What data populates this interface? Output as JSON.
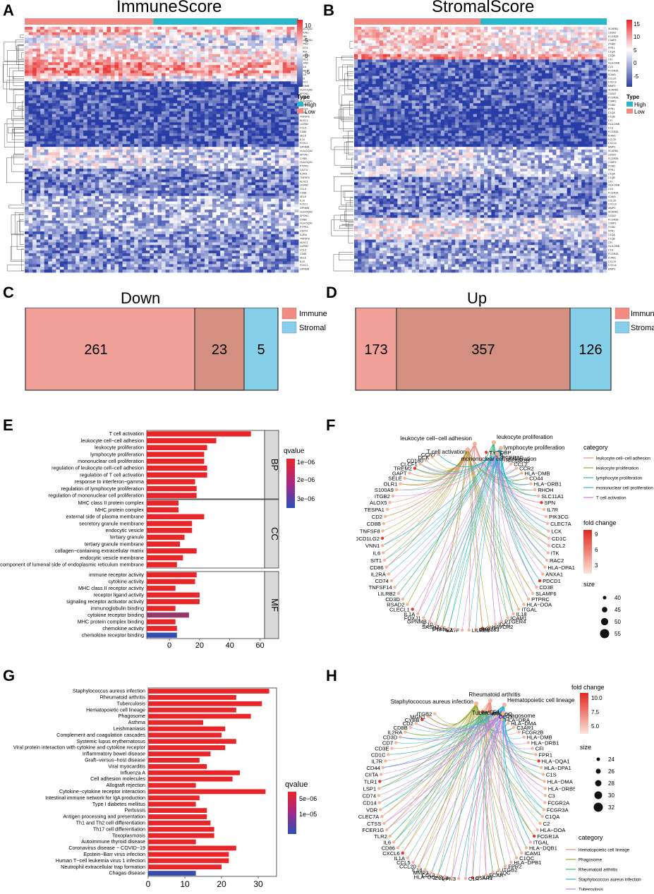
{
  "panels": {
    "A": {
      "letter": "A",
      "title": "ImmuneScore",
      "colorbar_ticks": [
        "10",
        "5",
        "0",
        "-5"
      ],
      "legend_title": "Type",
      "legend_items": [
        {
          "label": "High",
          "color": "#2ab7c9"
        },
        {
          "label": "Low",
          "color": "#f08a82"
        }
      ],
      "row_label_sample": [
        "HLA-DQA2",
        "SPON1",
        "CYBB",
        "HLA-DQA1",
        "PTPRC",
        "CD274",
        "IL2RA",
        "TNFSF8",
        "KLRC1",
        "LILRB2",
        "CCL5",
        "CD86",
        "SELE",
        "IL10",
        "FOXJ1",
        "GPNMB"
      ]
    },
    "B": {
      "letter": "B",
      "title": "StromalScore",
      "colorbar_ticks": [
        "15",
        "10",
        "5",
        "0",
        "-5"
      ],
      "legend_title": "Type",
      "legend_items": [
        {
          "label": "High",
          "color": "#2ab7c9"
        },
        {
          "label": "Low",
          "color": "#f08a82"
        }
      ],
      "row_label_sample": [
        "SCARB1",
        "CD302",
        "FCGR2B",
        "C3AR1",
        "ITGB2",
        "FPR1",
        "C1QA",
        "C1QB",
        "CFI",
        "HLA-DMB",
        "C1S",
        "FCGR3A",
        "ICAM1",
        "CCL20",
        "CXCL6",
        "MMP3"
      ]
    },
    "C": {
      "letter": "C",
      "title": "Down",
      "regions": [
        {
          "value": "261",
          "color": "#f2a19a"
        },
        {
          "value": "23",
          "color": "#d39081"
        },
        {
          "value": "5",
          "color": "#86cfe8"
        }
      ],
      "legend": [
        {
          "label": "Immune",
          "color": "#f28b82"
        },
        {
          "label": "Stromal",
          "color": "#87ceeb"
        }
      ]
    },
    "D": {
      "letter": "D",
      "title": "Up",
      "regions": [
        {
          "value": "173",
          "color": "#f2a19a"
        },
        {
          "value": "357",
          "color": "#d39081"
        },
        {
          "value": "126",
          "color": "#86cfe8"
        }
      ],
      "legend": [
        {
          "label": "Immune",
          "color": "#f28b82"
        },
        {
          "label": "Stromal",
          "color": "#87ceeb"
        }
      ]
    },
    "E": {
      "letter": "E"
    },
    "F": {
      "letter": "F",
      "category_title": "category",
      "categories": [
        {
          "label": "leukocyte cell−cell adhesion",
          "color": "#f08a82"
        },
        {
          "label": "leukocyte proliferation",
          "color": "#9aa829"
        },
        {
          "label": "lymphocyte proliferation",
          "color": "#34b97a"
        },
        {
          "label": "mononuclear cell proliferation",
          "color": "#2ab3d6"
        },
        {
          "label": "T cell activation",
          "color": "#c77ce8"
        }
      ],
      "fold_title": "fold change",
      "fold_ticks": [
        "9",
        "6",
        "3"
      ],
      "size_title": "size",
      "size_items": [
        "40",
        "45",
        "50",
        "55"
      ],
      "terms": [
        "leukocyte cell−cell adhesion",
        "T cell activation",
        "leukocyte proliferation",
        "lymphocyte proliferation",
        "mononuclear cell proliferation"
      ],
      "genes": [
        "TYROBP",
        "IL6",
        "FCER1G",
        "FCGR2B",
        "CCL2",
        "CCR2",
        "HLA−DMB",
        "CD44",
        "HLA−DRB1",
        "RHOH",
        "SLC11A1",
        "SPN",
        "IL7R",
        "PIK3CG",
        "CLEC7A",
        "LCK",
        "CD1C",
        "CCL2",
        "ITK",
        "RAC2",
        "HLA−DPA1",
        "ANXA1",
        "PDCD1",
        "CD3E",
        "SLAMF6",
        "PTPRC",
        "HLA−DOA",
        "ITGAL",
        "IL18",
        "ICAM1",
        "PTGER4",
        "IDO1",
        "HAVCR2",
        "CD7",
        "GPR183",
        "LILRB1",
        "BATF",
        "PTPN22",
        "CCL5",
        "SASH3",
        "IL10",
        "GPNMB",
        "FOXJ1",
        "IL1A",
        "CLECL1",
        "RSAD2",
        "CD3D",
        "LILRB2",
        "TNFSF14",
        "CD74",
        "IL2RA",
        "CD86",
        "SIT1",
        "IL6",
        "VNN1",
        "PDCD1LG2",
        "TNFSF8",
        "CD8B",
        "CD2",
        "TESPA1",
        "ALOX5",
        "ITGB2",
        "S100A9",
        "OLR1",
        "SELE",
        "GAPT",
        "TREM2",
        "CLCF1",
        "CD180",
        "DCK",
        "CCR7"
      ]
    },
    "G": {
      "letter": "G"
    },
    "H": {
      "letter": "H",
      "category_title": "category",
      "categories": [
        {
          "label": "Hematopoietic cell lineage",
          "color": "#f08a82"
        },
        {
          "label": "Phagosome",
          "color": "#9aa829"
        },
        {
          "label": "Rheumatoid arthritis",
          "color": "#34b97a"
        },
        {
          "label": "Staphylococcus aureus infection",
          "color": "#2ab3d6"
        },
        {
          "label": "Tuberculosis",
          "color": "#c77ce8"
        }
      ],
      "fold_title": "fold change",
      "fold_ticks": [
        "10.0",
        "7.5",
        "5.0"
      ],
      "size_title": "size",
      "size_items": [
        "24",
        "26",
        "28",
        "30",
        "32"
      ],
      "terms": [
        "Rheumatoid arthritis",
        "Staphylococcus aureus infection",
        "Tuberculosis",
        "Hematopoietic cell lineage",
        "Phagosome"
      ],
      "genes": [
        "NCF4",
        "MARCO",
        "OLR1",
        "HLA−DRA",
        "HLA−DMA",
        "C3AR1",
        "FCGR2B",
        "HLA−DMB",
        "HLA−DRB1",
        "CFI",
        "FPR1",
        "HLA−DQA1",
        "HLA−DPA1",
        "C1S",
        "HLA−DMA",
        "HLA−DRB5",
        "C3",
        "FCGR2A",
        "FCGR3A",
        "C1QA",
        "C2",
        "HLA−DOA",
        "FCGR1A",
        "ITGAL",
        "HLA−DQB1",
        "ICAM1",
        "C1QC",
        "HLA−DPB1",
        "FPR2",
        "ITGB2",
        "C1QC",
        "FCAR",
        "IL10",
        "C5AR1",
        "C1R",
        "FPR3",
        "C1QB",
        "HLA−DQA2",
        "CCL2",
        "MMP3",
        "IL18",
        "CCL20",
        "CCL5",
        "IL1A",
        "CXCL6",
        "CD86",
        "IL6",
        "TLR2",
        "FCER1G",
        "CTSS",
        "CLEC7A",
        "VDR",
        "CD14",
        "CD74",
        "LSP1",
        "TLR1",
        "CIITA",
        "CD44",
        "IL7R",
        "CD1C",
        "CD3E",
        "CD7",
        "CD3D",
        "IL2RA",
        "CD8B",
        "CD2",
        "CYBB",
        "MGN1",
        "ITGB2"
      ]
    }
  },
  "chart_data": [
    {
      "type": "bar",
      "panel": "E",
      "orientation": "horizontal",
      "facets": [
        {
          "name": "BP",
          "categories": [
            "T cell activation",
            "leukocyte cell−cell adhesion",
            "leukocyte proliferation",
            "lymphocyte proliferation",
            "mononuclear cell proliferation",
            "regulation of leukocyte cell−cell adhesion",
            "regulation of T cell activation",
            "response to interferon−gamma",
            "regulation of lymphocyte proliferation",
            "regulation of mononuclear cell proliferation"
          ],
          "values": [
            54,
            31,
            25,
            23,
            23,
            25,
            25,
            17,
            18,
            18
          ],
          "qvalues": [
            1e-07,
            1e-07,
            1e-07,
            1e-07,
            1e-07,
            1e-07,
            1e-07,
            1e-07,
            1e-07,
            1e-07
          ]
        },
        {
          "name": "CC",
          "categories": [
            "MHC class II protein complex",
            "MHC protein complex",
            "external side of plasma membrane",
            "secretory granule membrane",
            "endocytic vesicle",
            "tertiary granule",
            "tertiary granule membrane",
            "collagen−containing extracellular matrix",
            "endocytic vesicle membrane",
            "integral component of lumenal side of endoplasmic reticulum membrane"
          ],
          "values": [
            6,
            6,
            23,
            15,
            15,
            10,
            7,
            18,
            9,
            5
          ],
          "qvalues": [
            1e-07,
            1e-07,
            1e-07,
            1e-07,
            1e-07,
            1e-07,
            1e-07,
            1e-07,
            1e-07,
            1e-07
          ]
        },
        {
          "name": "MF",
          "categories": [
            "immune receptor activity",
            "cytokine activity",
            "MHC class II receptor activity",
            "receptor ligand activity",
            "signaling receptor activator activity",
            "immunoglobulin binding",
            "cytokine receptor binding",
            "MHC protein complex binding",
            "chemokine activity",
            "chemokine receptor binding"
          ],
          "values": [
            18,
            17,
            4,
            20,
            20,
            4,
            13,
            4,
            5,
            5
          ],
          "qvalues": [
            1e-07,
            1e-07,
            1e-07,
            1e-07,
            1e-07,
            1e-07,
            1.5e-06,
            1e-07,
            1e-07,
            3.2e-06
          ]
        }
      ],
      "xticks": [
        0,
        20,
        40,
        60
      ],
      "xlim": [
        -15,
        63
      ],
      "legend_title": "qvalue",
      "legend_ticks": [
        "1e−06",
        "2e−06",
        "3e−06"
      ],
      "qvalue_range": [
        1e-07,
        3.3e-06
      ],
      "title": "",
      "xlabel": "",
      "ylabel": ""
    },
    {
      "type": "bar",
      "panel": "G",
      "orientation": "horizontal",
      "categories": [
        "Staphylococcus aureus infection",
        "Rheumatoid arthritis",
        "Tuberculosis",
        "Hematopoietic cell lineage",
        "Phagosome",
        "Asthma",
        "Leishmaniasis",
        "Complement and coagulation cascades",
        "Systemic lupus erythematosus",
        "Viral protein interaction with cytokine and cytokine receptor",
        "Inflammatory bowel disease",
        "Graft−versus−host disease",
        "Viral myocarditis",
        "Influenza A",
        "Cell adhesion molecules",
        "Allograft rejection",
        "Cytokine−cytokine receptor interaction",
        "Intestinal immune network for IgA production",
        "Type I diabetes mellitus",
        "Pertussis",
        "Antigen processing and presentation",
        "Th1 and Th2 cell differentiation",
        "Th17 cell differentiation",
        "Toxoplasmosis",
        "Autoimmune thyroid disease",
        "Coronavirus disease − COVID−19",
        "Epstein−Barr virus infection",
        "Human T−cell leukemia virus 1 infection",
        "Neutrophil extracellular trap formation",
        "Chagas disease"
      ],
      "values": [
        33,
        24,
        31,
        24,
        28,
        15,
        21,
        20,
        24,
        21,
        17,
        14,
        16,
        25,
        23,
        13,
        32,
        14,
        13,
        16,
        16,
        17,
        18,
        18,
        13,
        24,
        22,
        22,
        20,
        13
      ],
      "qvalues": [
        1e-07,
        1e-07,
        1e-07,
        1e-07,
        1e-07,
        1e-07,
        1e-07,
        1e-07,
        1e-07,
        1e-07,
        1e-07,
        1e-07,
        1e-07,
        1e-07,
        1e-07,
        1e-07,
        1e-07,
        1e-07,
        1e-07,
        1e-07,
        1e-07,
        1e-07,
        1e-07,
        1e-07,
        1e-07,
        1e-07,
        1e-07,
        1e-07,
        1e-07,
        1.3e-05
      ],
      "xticks": [
        0,
        10,
        20,
        30
      ],
      "xlim": [
        0,
        35
      ],
      "legend_title": "qvalue",
      "legend_ticks": [
        "5e−06",
        "1e−05"
      ],
      "qvalue_range": [
        1e-07,
        1.4e-05
      ],
      "title": "",
      "xlabel": "",
      "ylabel": ""
    }
  ]
}
